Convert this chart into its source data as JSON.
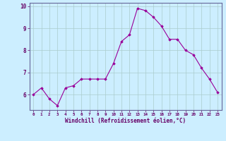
{
  "x": [
    0,
    1,
    2,
    3,
    4,
    5,
    6,
    7,
    8,
    9,
    10,
    11,
    12,
    13,
    14,
    15,
    16,
    17,
    18,
    19,
    20,
    21,
    22,
    23
  ],
  "y": [
    6.0,
    6.3,
    5.8,
    5.5,
    6.3,
    6.4,
    6.7,
    6.7,
    6.7,
    6.7,
    7.4,
    8.4,
    8.7,
    9.9,
    9.8,
    9.5,
    9.1,
    8.5,
    8.5,
    8.0,
    7.8,
    7.2,
    6.7,
    6.1
  ],
  "line_color": "#990099",
  "marker": "D",
  "marker_size": 1.8,
  "bg_color": "#cceeff",
  "grid_color": "#aacccc",
  "xlabel": "Windchill (Refroidissement éolien,°C)",
  "xlabel_color": "#660066",
  "tick_color": "#660066",
  "axis_color": "#666699",
  "ylim": [
    5.3,
    10.15
  ],
  "xlim": [
    -0.5,
    23.5
  ],
  "yticks": [
    6,
    7,
    8,
    9,
    10
  ],
  "xticks": [
    0,
    1,
    2,
    3,
    4,
    5,
    6,
    7,
    8,
    9,
    10,
    11,
    12,
    13,
    14,
    15,
    16,
    17,
    18,
    19,
    20,
    21,
    22,
    23
  ]
}
